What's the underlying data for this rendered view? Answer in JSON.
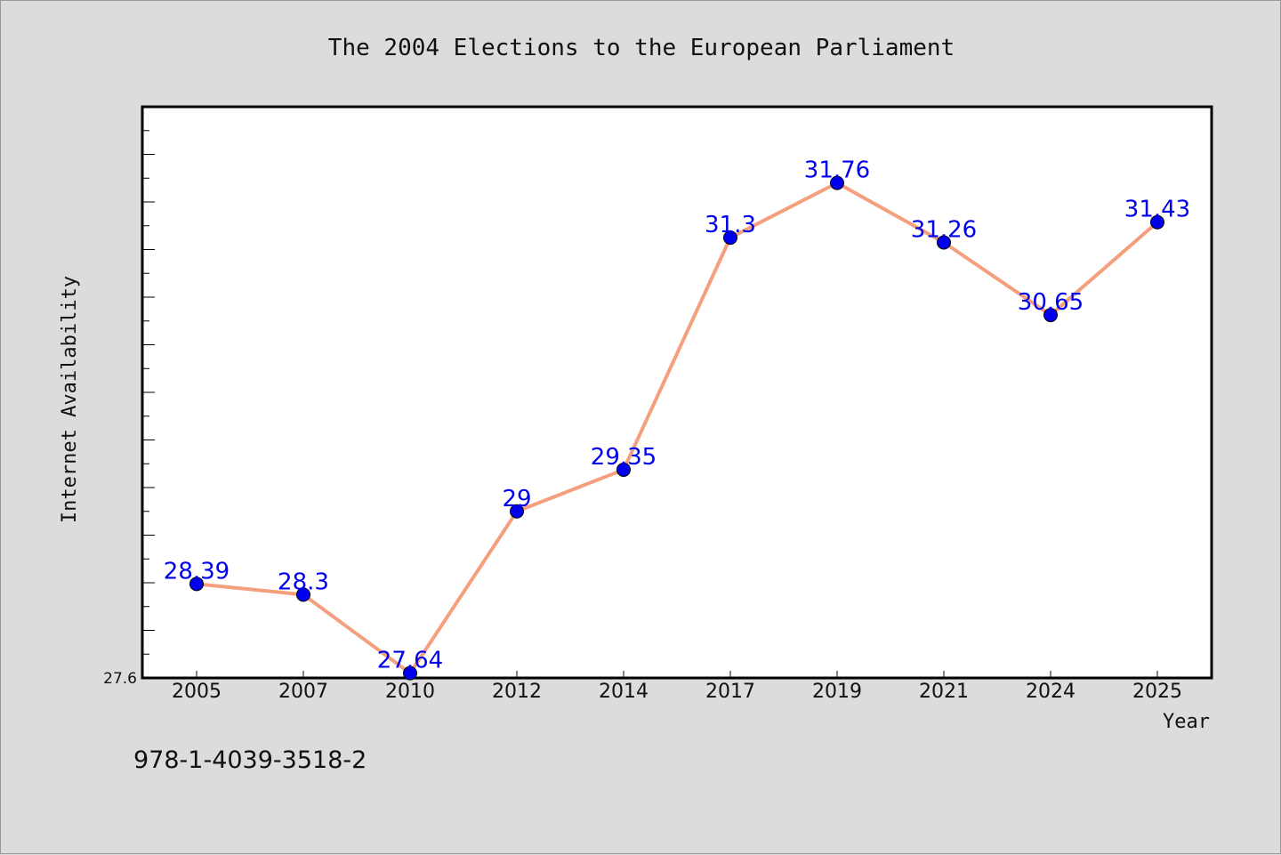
{
  "chart_data": {
    "type": "line",
    "title": "The 2004 Elections to the European Parliament",
    "xlabel": "Year",
    "ylabel": "Internet Availability",
    "categories": [
      "2005",
      "2007",
      "2010",
      "2012",
      "2014",
      "2017",
      "2019",
      "2021",
      "2024",
      "2025"
    ],
    "values": [
      28.39,
      28.3,
      27.64,
      29,
      29.35,
      31.3,
      31.76,
      31.26,
      30.65,
      31.43
    ],
    "data_labels": [
      "28.39",
      "28.3",
      "27.64",
      "29",
      "29.35",
      "31.3",
      "31.76",
      "31.26",
      "30.65",
      "31.43"
    ],
    "yticks": [
      "27.6"
    ],
    "ylim": [
      27.6,
      32.4
    ],
    "grid": false,
    "line_color": "#f4a07f",
    "marker_color": "#0000ee",
    "label_color": "#0000ee"
  },
  "footer": {
    "isbn": "978-1-4039-3518-2"
  }
}
